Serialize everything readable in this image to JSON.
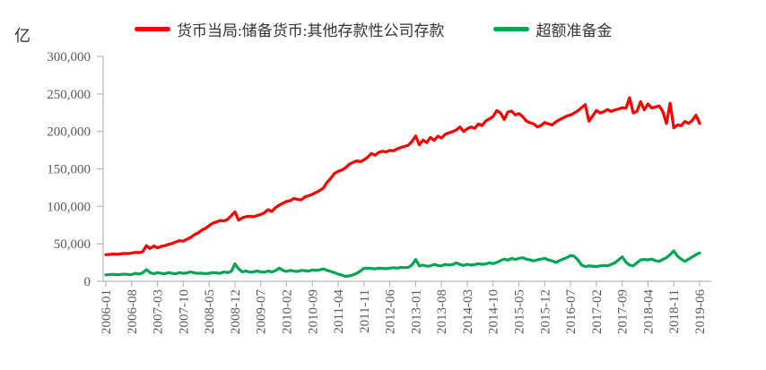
{
  "unit_label": "亿",
  "legend": [
    {
      "label": "货币当局:储备货币:其他存款性公司存款",
      "color": "#fe0000"
    },
    {
      "label": "超额准备金",
      "color": "#00a651"
    }
  ],
  "style": {
    "background": "#ffffff",
    "axis_color": "#b7b7b7",
    "tick_label_color": "#595959",
    "legend_text_color": "#333333",
    "line_width": 3.2
  },
  "chart_data": {
    "type": "line",
    "title": "",
    "xlabel": "",
    "ylabel": "亿",
    "x_start": "2006-01",
    "x_end": "2019-06",
    "x_frequency": "monthly",
    "grid": false,
    "legend_position": "top",
    "ylim": [
      0,
      300000
    ],
    "y_ticks": [
      0,
      50000,
      100000,
      150000,
      200000,
      250000,
      300000
    ],
    "y_tick_labels": [
      "0",
      "50,000",
      "100,000",
      "150,000",
      "200,000",
      "250,000",
      "300,000"
    ],
    "x_tick_step": 7,
    "x_tick_labels": [
      "2006-01",
      "2006-08",
      "2007-03",
      "2007-10",
      "2008-05",
      "2008-12",
      "2009-07",
      "2010-02",
      "2010-09",
      "2011-04",
      "2011-11",
      "2012-06",
      "2013-01",
      "2013-08",
      "2014-03",
      "2014-10",
      "2015-05",
      "2015-12",
      "2016-07",
      "2017-02",
      "2017-09",
      "2018-04",
      "2018-11",
      "2019-06"
    ],
    "series": [
      {
        "name": "货币当局:储备货币:其他存款性公司存款",
        "color": "#fe0000",
        "values": [
          35500,
          35800,
          36300,
          36000,
          36600,
          37200,
          36900,
          37600,
          38600,
          38200,
          39600,
          47600,
          43600,
          47200,
          44600,
          46600,
          47600,
          49200,
          50600,
          52600,
          54200,
          53600,
          56200,
          58600,
          62200,
          64600,
          68200,
          70600,
          74200,
          77600,
          79200,
          81200,
          80600,
          82600,
          87600,
          92600,
          81600,
          84600,
          86200,
          86600,
          86200,
          87600,
          89200,
          91600,
          95600,
          93200,
          98200,
          101600,
          104200,
          106600,
          107600,
          110600,
          109200,
          108600,
          112600,
          114200,
          116200,
          118600,
          121200,
          124600,
          132200,
          137600,
          144200,
          146600,
          148600,
          151600,
          156200,
          158600,
          160600,
          159600,
          162100,
          165600,
          170600,
          168200,
          172100,
          173600,
          172600,
          174600,
          174100,
          176600,
          178600,
          180000,
          181600,
          186600,
          194000,
          182000,
          188500,
          185000,
          192000,
          188000,
          193600,
          191200,
          196000,
          198000,
          199600,
          201900,
          205900,
          199900,
          203600,
          205900,
          204000,
          209900,
          207900,
          213900,
          216600,
          219900,
          227800,
          224600,
          215900,
          225900,
          227100,
          221900,
          223900,
          219900,
          213900,
          211600,
          210000,
          205900,
          207900,
          211900,
          210000,
          208600,
          212600,
          215600,
          218000,
          220600,
          222000,
          224600,
          227600,
          231600,
          235800,
          213600,
          220600,
          227900,
          224600,
          226200,
          229200,
          226600,
          228600,
          229800,
          231600,
          230800,
          245000,
          224600,
          226600,
          239600,
          228600,
          236600,
          231200,
          232600,
          234200,
          226600,
          210600,
          237600,
          204600,
          208600,
          207600,
          213200,
          210600,
          214600,
          221600,
          210600
        ]
      },
      {
        "name": "超额准备金",
        "color": "#00a651",
        "values": [
          8600,
          8900,
          9300,
          8800,
          9100,
          9600,
          9200,
          9000,
          10600,
          9600,
          11200,
          15600,
          11600,
          10200,
          11600,
          10600,
          10200,
          11600,
          10600,
          10200,
          11600,
          10600,
          11200,
          12600,
          11200,
          10600,
          10900,
          10200,
          10600,
          11600,
          11200,
          10600,
          12600,
          11600,
          13200,
          23200,
          16600,
          12600,
          13600,
          12200,
          12600,
          13600,
          12600,
          12200,
          13600,
          12600,
          14200,
          17600,
          14600,
          13200,
          14600,
          13600,
          13200,
          14600,
          14200,
          13600,
          15200,
          14600,
          15200,
          16600,
          14600,
          13200,
          11600,
          9600,
          8200,
          6600,
          7200,
          8600,
          10600,
          13600,
          17200,
          17600,
          17200,
          16600,
          17600,
          17200,
          16800,
          17600,
          18200,
          17600,
          18600,
          18200,
          18600,
          21600,
          29200,
          20600,
          21600,
          20200,
          20600,
          22600,
          21200,
          20600,
          22600,
          21600,
          22200,
          24600,
          22600,
          21200,
          22600,
          21600,
          22200,
          23600,
          22600,
          23200,
          24600,
          23600,
          25200,
          27600,
          29600,
          28200,
          30600,
          29200,
          30600,
          31600,
          29600,
          28600,
          27200,
          28600,
          29600,
          30600,
          28600,
          27200,
          25200,
          27600,
          29600,
          31600,
          34600,
          33200,
          28600,
          21600,
          19600,
          20600,
          20200,
          19600,
          20600,
          21200,
          20600,
          22600,
          24600,
          28600,
          32600,
          25600,
          21600,
          20600,
          24600,
          28600,
          29200,
          28600,
          29600,
          27600,
          26600,
          29200,
          31600,
          35600,
          40600,
          33600,
          29600,
          26600,
          29600,
          32600,
          35600,
          37600
        ]
      }
    ]
  }
}
